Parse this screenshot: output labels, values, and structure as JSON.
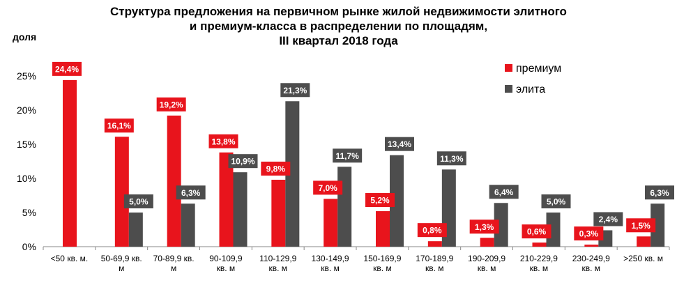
{
  "chart_data": {
    "type": "bar",
    "title_lines": [
      "Структура  предложения на первичном рынке жилой недвижимости элитного",
      "и премиум-класса в распределении по площадям,",
      "III квартал 2018 года"
    ],
    "ylabel": "доля",
    "ylim": [
      0,
      25
    ],
    "yticks": [
      "0%",
      "5%",
      "10%",
      "15%",
      "20%",
      "25%"
    ],
    "grid": false,
    "legend_position": "top-right",
    "categories": [
      [
        "<50 кв. м."
      ],
      [
        "50-69,9 кв.",
        "м"
      ],
      [
        "70-89,9 кв.",
        "м"
      ],
      [
        "90-109,9",
        "кв. м"
      ],
      [
        "110-129,9",
        "кв. м"
      ],
      [
        "130-149,9",
        "кв. м"
      ],
      [
        "150-169,9",
        "кв. м"
      ],
      [
        "170-189,9",
        "кв. м"
      ],
      [
        "190-209,9",
        "кв. м"
      ],
      [
        "210-229,9",
        "кв. м"
      ],
      [
        "230-249,9",
        "кв. м"
      ],
      [
        ">250 кв. м"
      ]
    ],
    "series": [
      {
        "name": "премиум",
        "color": "#e8141c",
        "values": [
          24.4,
          16.1,
          19.2,
          13.8,
          9.8,
          7.0,
          5.2,
          0.8,
          1.3,
          0.6,
          0.3,
          1.5
        ],
        "labels": [
          "24,4%",
          "16,1%",
          "19,2%",
          "13,8%",
          "9,8%",
          "7,0%",
          "5,2%",
          "0,8%",
          "1,3%",
          "0,6%",
          "0,3%",
          "1,5%"
        ]
      },
      {
        "name": "элита",
        "color": "#4d4d4d",
        "values": [
          null,
          5.0,
          6.3,
          10.9,
          21.3,
          11.7,
          13.4,
          11.3,
          6.4,
          5.0,
          2.4,
          6.3
        ],
        "labels": [
          "",
          "5,0%",
          "6,3%",
          "10,9%",
          "21,3%",
          "11,7%",
          "13,4%",
          "11,3%",
          "6,4%",
          "5,0%",
          "2,4%",
          "6,3%"
        ]
      }
    ]
  }
}
